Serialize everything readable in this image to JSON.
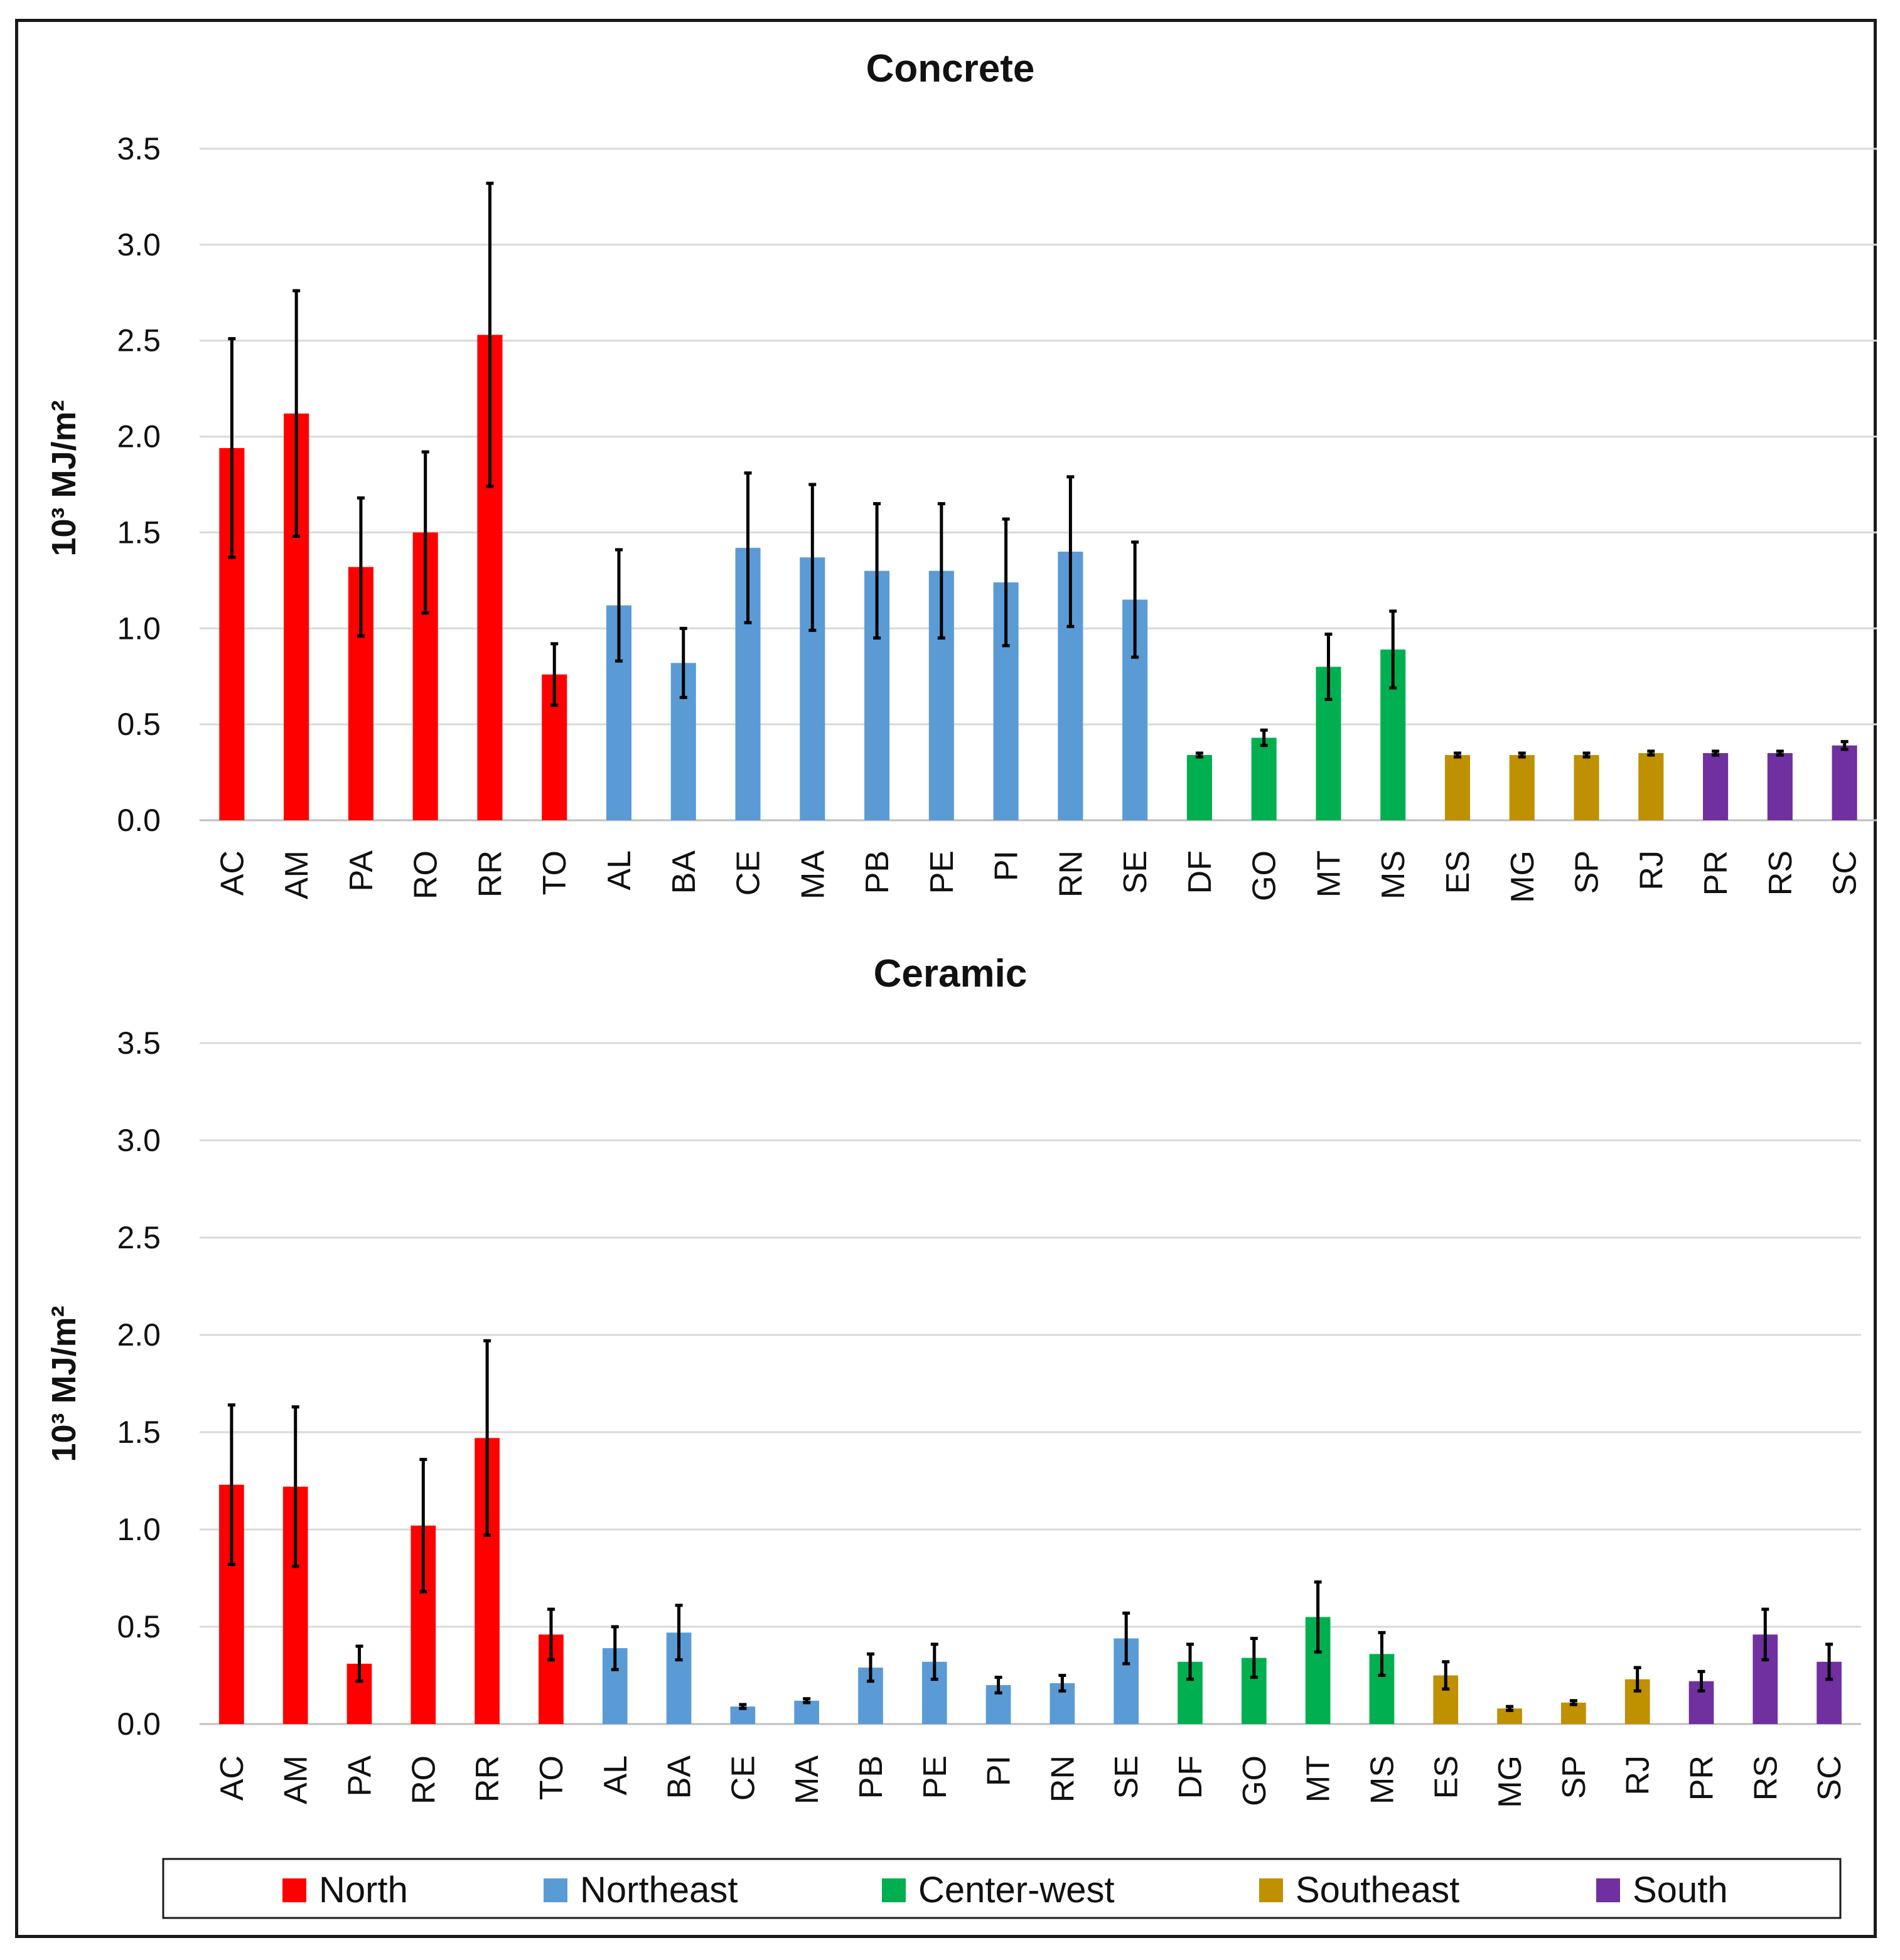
{
  "colors": {
    "North": "#ff0000",
    "Northeast": "#5b9bd5",
    "Center-west": "#00b050",
    "Southeast": "#bf9000",
    "South": "#7030a0"
  },
  "legend": {
    "items": [
      "North",
      "Northeast",
      "Center-west",
      "Southeast",
      "South"
    ]
  },
  "chart_data": [
    {
      "type": "bar",
      "title": "Concrete",
      "ylabel": "10³ MJ/m²",
      "xlabel": "",
      "ylim": [
        0,
        3.5
      ],
      "yticks": [
        "0.0",
        "0.5",
        "1.0",
        "1.5",
        "2.0",
        "2.5",
        "3.0",
        "3.5"
      ],
      "grid": true,
      "categories": [
        "AC",
        "AM",
        "PA",
        "RO",
        "RR",
        "TO",
        "AL",
        "BA",
        "CE",
        "MA",
        "PB",
        "PE",
        "PI",
        "RN",
        "SE",
        "DF",
        "GO",
        "MT",
        "MS",
        "ES",
        "MG",
        "SP",
        "RJ",
        "PR",
        "RS",
        "SC"
      ],
      "regions": [
        "North",
        "North",
        "North",
        "North",
        "North",
        "North",
        "Northeast",
        "Northeast",
        "Northeast",
        "Northeast",
        "Northeast",
        "Northeast",
        "Northeast",
        "Northeast",
        "Northeast",
        "Center-west",
        "Center-west",
        "Center-west",
        "Center-west",
        "Southeast",
        "Southeast",
        "Southeast",
        "Southeast",
        "South",
        "South",
        "South"
      ],
      "values": [
        1.94,
        2.12,
        1.32,
        1.5,
        2.53,
        0.76,
        1.12,
        0.82,
        1.42,
        1.37,
        1.3,
        1.3,
        1.24,
        1.4,
        1.15,
        0.34,
        0.43,
        0.8,
        0.89,
        0.34,
        0.34,
        0.34,
        0.35,
        0.35,
        0.35,
        0.39
      ],
      "error": [
        0.57,
        0.64,
        0.36,
        0.42,
        0.79,
        0.16,
        0.29,
        0.18,
        0.39,
        0.38,
        0.35,
        0.35,
        0.33,
        0.39,
        0.3,
        0.01,
        0.04,
        0.17,
        0.2,
        0.01,
        0.01,
        0.01,
        0.01,
        0.01,
        0.01,
        0.02
      ]
    },
    {
      "type": "bar",
      "title": "Ceramic",
      "ylabel": "10³ MJ/m²",
      "xlabel": "",
      "ylim": [
        0,
        3.5
      ],
      "yticks": [
        "0.0",
        "0.5",
        "1.0",
        "1.5",
        "2.0",
        "2.5",
        "3.0",
        "3.5"
      ],
      "grid": true,
      "categories": [
        "AC",
        "AM",
        "PA",
        "RO",
        "RR",
        "TO",
        "AL",
        "BA",
        "CE",
        "MA",
        "PB",
        "PE",
        "PI",
        "RN",
        "SE",
        "DF",
        "GO",
        "MT",
        "MS",
        "ES",
        "MG",
        "SP",
        "RJ",
        "PR",
        "RS",
        "SC"
      ],
      "regions": [
        "North",
        "North",
        "North",
        "North",
        "North",
        "North",
        "Northeast",
        "Northeast",
        "Northeast",
        "Northeast",
        "Northeast",
        "Northeast",
        "Northeast",
        "Northeast",
        "Northeast",
        "Center-west",
        "Center-west",
        "Center-west",
        "Center-west",
        "Southeast",
        "Southeast",
        "Southeast",
        "Southeast",
        "South",
        "South",
        "South"
      ],
      "values": [
        1.23,
        1.22,
        0.31,
        1.02,
        1.47,
        0.46,
        0.39,
        0.47,
        0.09,
        0.12,
        0.29,
        0.32,
        0.2,
        0.21,
        0.44,
        0.32,
        0.34,
        0.55,
        0.36,
        0.25,
        0.08,
        0.11,
        0.23,
        0.22,
        0.46,
        0.32
      ],
      "error": [
        0.41,
        0.41,
        0.09,
        0.34,
        0.5,
        0.13,
        0.11,
        0.14,
        0.01,
        0.01,
        0.07,
        0.09,
        0.04,
        0.04,
        0.13,
        0.09,
        0.1,
        0.18,
        0.11,
        0.07,
        0.01,
        0.01,
        0.06,
        0.05,
        0.13,
        0.09
      ]
    }
  ]
}
